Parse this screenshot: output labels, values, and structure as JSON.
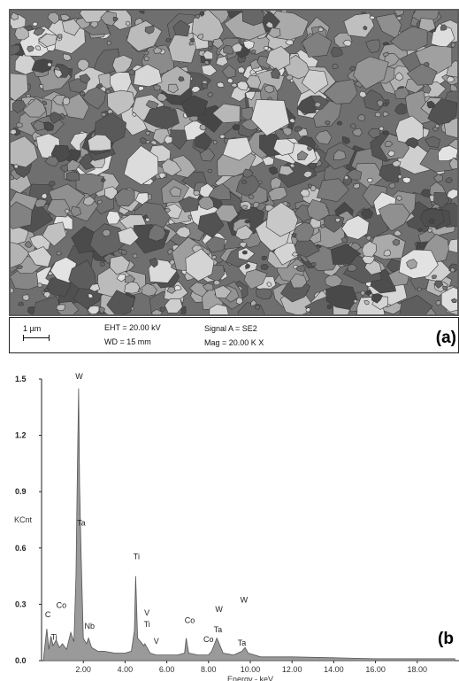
{
  "sem": {
    "scale_text": "1 µm",
    "eht": "EHT = 20.00 kV",
    "wd": "WD =   15 mm",
    "signal": "Signal A = SE2",
    "mag": "Mag =  20.00 K X",
    "panel_label": "(a)"
  },
  "panel_b_label": "(b",
  "chart_data": {
    "type": "line",
    "title": "",
    "xlabel": "Energy - keV",
    "ylabel": "KCnt",
    "xlim": [
      0,
      20
    ],
    "ylim": [
      0,
      1.5
    ],
    "x_ticks": [
      "2.00",
      "4.00",
      "6.00",
      "8.00",
      "10.00",
      "12.00",
      "14.00",
      "16.00",
      "18.00"
    ],
    "x_tick_values": [
      2,
      4,
      6,
      8,
      10,
      12,
      14,
      16,
      18
    ],
    "y_ticks": [
      "0.0",
      "0.3",
      "0.6",
      "0.9",
      "1.2",
      "1.5"
    ],
    "y_tick_values": [
      0,
      0.3,
      0.6,
      0.9,
      1.2,
      1.5
    ],
    "series": [
      {
        "values": [
          [
            0.1,
            0.02
          ],
          [
            0.25,
            0.17
          ],
          [
            0.35,
            0.06
          ],
          [
            0.45,
            0.13
          ],
          [
            0.55,
            0.08
          ],
          [
            0.7,
            0.11
          ],
          [
            0.85,
            0.07
          ],
          [
            1.0,
            0.09
          ],
          [
            1.2,
            0.06
          ],
          [
            1.4,
            0.15
          ],
          [
            1.55,
            0.1
          ],
          [
            1.65,
            0.45
          ],
          [
            1.72,
            1.05
          ],
          [
            1.775,
            1.45
          ],
          [
            1.82,
            0.93
          ],
          [
            1.9,
            0.55
          ],
          [
            2.0,
            0.12
          ],
          [
            2.15,
            0.09
          ],
          [
            2.25,
            0.12
          ],
          [
            2.4,
            0.07
          ],
          [
            2.7,
            0.05
          ],
          [
            3.0,
            0.05
          ],
          [
            3.5,
            0.04
          ],
          [
            4.0,
            0.04
          ],
          [
            4.3,
            0.05
          ],
          [
            4.45,
            0.16
          ],
          [
            4.51,
            0.45
          ],
          [
            4.6,
            0.12
          ],
          [
            4.9,
            0.08
          ],
          [
            4.95,
            0.09
          ],
          [
            5.2,
            0.04
          ],
          [
            5.5,
            0.03
          ],
          [
            6.0,
            0.03
          ],
          [
            6.5,
            0.03
          ],
          [
            6.85,
            0.04
          ],
          [
            6.93,
            0.12
          ],
          [
            7.05,
            0.04
          ],
          [
            7.5,
            0.03
          ],
          [
            8.0,
            0.03
          ],
          [
            8.15,
            0.05
          ],
          [
            8.4,
            0.12
          ],
          [
            8.55,
            0.08
          ],
          [
            8.7,
            0.04
          ],
          [
            9.2,
            0.03
          ],
          [
            9.6,
            0.05
          ],
          [
            9.75,
            0.07
          ],
          [
            9.9,
            0.04
          ],
          [
            10.5,
            0.02
          ],
          [
            12.0,
            0.02
          ],
          [
            14.0,
            0.015
          ],
          [
            16.0,
            0.01
          ],
          [
            18.0,
            0.01
          ],
          [
            19.8,
            0.01
          ]
        ]
      }
    ],
    "annotations": [
      {
        "text": "W",
        "x": 1.8,
        "y": 1.5
      },
      {
        "text": "Ta",
        "x": 1.9,
        "y": 0.72
      },
      {
        "text": "C",
        "x": 0.3,
        "y": 0.23
      },
      {
        "text": "Co",
        "x": 0.95,
        "y": 0.28
      },
      {
        "text": "Ti",
        "x": 0.6,
        "y": 0.11
      },
      {
        "text": "Nb",
        "x": 2.3,
        "y": 0.17
      },
      {
        "text": "Ti",
        "x": 4.55,
        "y": 0.54
      },
      {
        "text": "V",
        "x": 5.05,
        "y": 0.24
      },
      {
        "text": "Ti",
        "x": 5.05,
        "y": 0.18
      },
      {
        "text": "V",
        "x": 5.5,
        "y": 0.09
      },
      {
        "text": "Co",
        "x": 7.1,
        "y": 0.2
      },
      {
        "text": "W",
        "x": 8.5,
        "y": 0.26
      },
      {
        "text": "Ta",
        "x": 8.45,
        "y": 0.15
      },
      {
        "text": "Co",
        "x": 8.0,
        "y": 0.1
      },
      {
        "text": "W",
        "x": 9.7,
        "y": 0.31
      },
      {
        "text": "Ta",
        "x": 9.6,
        "y": 0.08
      }
    ]
  }
}
